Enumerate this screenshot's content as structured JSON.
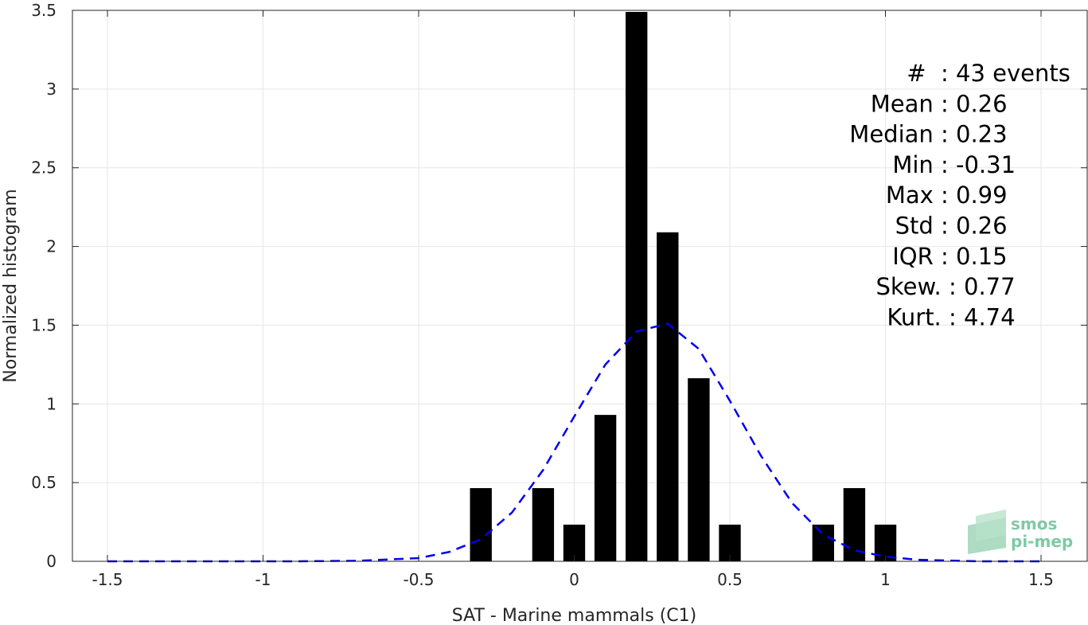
{
  "chart_data": {
    "type": "bar",
    "xlabel": "SAT - Marine mammals (C1)",
    "ylabel": "Normalized histogram",
    "xlim": [
      -1.5,
      1.5
    ],
    "ylim": [
      0,
      3.5
    ],
    "grid": true,
    "x_ticks": [
      "-1.5",
      "-1",
      "-0.5",
      "0",
      "0.5",
      "1",
      "1.5"
    ],
    "x_tick_values": [
      -1.5,
      -1,
      -0.5,
      0,
      0.5,
      1,
      1.5
    ],
    "y_ticks": [
      "0",
      "0.5",
      "1",
      "1.5",
      "2",
      "2.5",
      "3",
      "3.5"
    ],
    "y_tick_values": [
      0,
      0.5,
      1,
      1.5,
      2,
      2.5,
      3,
      3.5
    ],
    "bar_width": 0.07,
    "bars": [
      {
        "x": -0.3,
        "value": 0.465
      },
      {
        "x": -0.1,
        "value": 0.465
      },
      {
        "x": 0.0,
        "value": 0.233
      },
      {
        "x": 0.1,
        "value": 0.93
      },
      {
        "x": 0.2,
        "value": 3.49
      },
      {
        "x": 0.3,
        "value": 2.09
      },
      {
        "x": 0.4,
        "value": 1.163
      },
      {
        "x": 0.5,
        "value": 0.233
      },
      {
        "x": 0.8,
        "value": 0.233
      },
      {
        "x": 0.9,
        "value": 0.465
      },
      {
        "x": 1.0,
        "value": 0.233
      }
    ],
    "bar_color": "#000000",
    "fit_curve": {
      "style": "dashed",
      "color": "#0000ee",
      "points": [
        [
          -1.5,
          0.0
        ],
        [
          -1.3,
          0.0
        ],
        [
          -1.1,
          0.0
        ],
        [
          -0.9,
          0.0
        ],
        [
          -0.7,
          0.003
        ],
        [
          -0.5,
          0.02
        ],
        [
          -0.4,
          0.06
        ],
        [
          -0.3,
          0.14
        ],
        [
          -0.2,
          0.31
        ],
        [
          -0.1,
          0.58
        ],
        [
          0.0,
          0.92
        ],
        [
          0.1,
          1.25
        ],
        [
          0.2,
          1.46
        ],
        [
          0.3,
          1.51
        ],
        [
          0.4,
          1.35
        ],
        [
          0.5,
          1.02
        ],
        [
          0.6,
          0.67
        ],
        [
          0.7,
          0.37
        ],
        [
          0.8,
          0.17
        ],
        [
          0.9,
          0.07
        ],
        [
          1.0,
          0.03
        ],
        [
          1.1,
          0.01
        ],
        [
          1.3,
          0.0
        ],
        [
          1.5,
          0.0
        ]
      ]
    }
  },
  "stats": [
    {
      "label": "#  ",
      "value": ": 43 events",
      "offset": 0
    },
    {
      "label": "Mean ",
      "value": ": 0.26",
      "offset": 0
    },
    {
      "label": "Median ",
      "value": ": 0.23",
      "offset": 0
    },
    {
      "label": "Min ",
      "value": ": -0.31",
      "offset": 0
    },
    {
      "label": "Max ",
      "value": ": 0.99",
      "offset": 0
    },
    {
      "label": "Std ",
      "value": ": 0.26",
      "offset": 0
    },
    {
      "label": "IQR ",
      "value": ": 0.15",
      "offset": 0
    },
    {
      "label": "Skew. ",
      "value": ": 0.77",
      "offset": 1
    },
    {
      "label": "Kurt. ",
      "value": ": 4.74",
      "offset": 1
    }
  ],
  "logo": {
    "line1": "smos",
    "line2": "pi-mep",
    "color": "#7fc9a4"
  }
}
